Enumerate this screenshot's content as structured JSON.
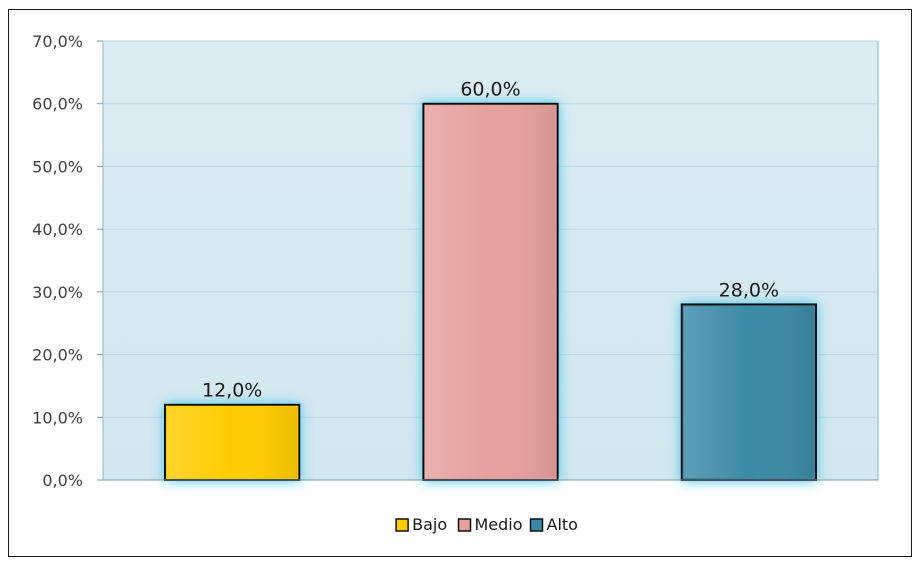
{
  "chart_data": {
    "type": "bar",
    "categories": [
      "Bajo",
      "Medio",
      "Alto"
    ],
    "values": [
      12.0,
      60.0,
      28.0
    ],
    "value_labels": [
      "12,0%",
      "60,0%",
      "28,0%"
    ],
    "colors": [
      "#ffcc00",
      "#e6a09e",
      "#3a8aa6"
    ],
    "ylim": [
      0,
      70
    ],
    "yticks": [
      0,
      10,
      20,
      30,
      40,
      50,
      60,
      70
    ],
    "ytick_labels": [
      "0,0%",
      "10,0%",
      "20,0%",
      "30,0%",
      "40,0%",
      "50,0%",
      "60,0%",
      "70,0%"
    ],
    "grid": true,
    "legend": {
      "position": "bottom",
      "entries": [
        "Bajo",
        "Medio",
        "Alto"
      ]
    },
    "title": "",
    "xlabel": "",
    "ylabel": ""
  }
}
